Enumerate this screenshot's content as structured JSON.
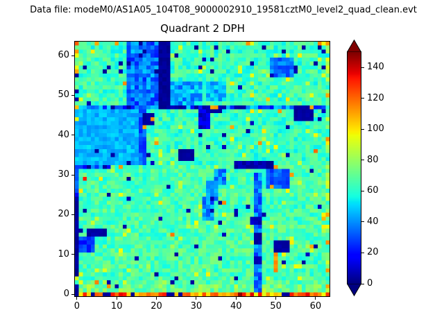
{
  "header": {
    "text": "Data file: modeM0/AS1A05_104T08_9000002910_19581cztM0_level2_quad_clean.evt"
  },
  "chart_data": {
    "type": "heatmap",
    "title": "Quadrant 2 DPH",
    "grid_size": [
      64,
      64
    ],
    "x_range": [
      0,
      64
    ],
    "y_range": [
      0,
      64
    ],
    "x_ticks": [
      0,
      10,
      20,
      30,
      40,
      50,
      60
    ],
    "y_ticks": [
      0,
      10,
      20,
      30,
      40,
      50,
      60
    ],
    "colormap": "jet",
    "value_range": [
      0,
      150
    ],
    "colorbar": {
      "ticks": [
        0,
        20,
        40,
        60,
        80,
        100,
        120,
        140
      ],
      "extend": "both",
      "under_color": "#000080",
      "over_color": "#7f0000"
    },
    "description": "64x64 detector pixel histogram (DPH); cyan-green background ~60-80 counts, blue/navy dead columns and blobs, hot orange/red edge pixels",
    "generation": {
      "seed": 1337,
      "layers": [
        {
          "op": "fill",
          "x": [
            0,
            63
          ],
          "y": [
            0,
            63
          ],
          "base": 66,
          "noise": 11
        },
        {
          "op": "fill",
          "x": [
            0,
            63
          ],
          "y": [
            0,
            2
          ],
          "base": 72,
          "noise": 13
        },
        {
          "op": "fill",
          "x": [
            0,
            16
          ],
          "y": [
            33,
            47
          ],
          "base": 46,
          "noise": 7
        },
        {
          "op": "fill",
          "x": [
            17,
            63
          ],
          "y": [
            33,
            47
          ],
          "base": 63,
          "noise": 10
        },
        {
          "op": "fill",
          "x": [
            0,
            63
          ],
          "y": [
            48,
            63
          ],
          "base": 64,
          "noise": 11
        },
        {
          "op": "fill",
          "x": [
            13,
            20
          ],
          "y": [
            48,
            63
          ],
          "base": 36,
          "noise": 14
        },
        {
          "op": "fill",
          "x": [
            24,
            31
          ],
          "y": [
            48,
            53
          ],
          "base": 44,
          "noise": 13
        },
        {
          "op": "fill",
          "x": [
            33,
            37
          ],
          "y": [
            49,
            53
          ],
          "base": 46,
          "noise": 11
        },
        {
          "op": "fill",
          "x": [
            49,
            54
          ],
          "y": [
            55,
            59
          ],
          "base": 36,
          "noise": 10
        },
        {
          "op": "fill",
          "x": [
            0,
            63
          ],
          "y": [
            47,
            47
          ],
          "base": 36,
          "noise": 20
        },
        {
          "op": "fill",
          "x": [
            21,
            23
          ],
          "y": [
            47,
            63
          ],
          "base": 3,
          "noise": 2
        },
        {
          "op": "fill",
          "x": [
            32,
            36
          ],
          "y": [
            46,
            47
          ],
          "base": 5,
          "noise": 3
        },
        {
          "op": "fill",
          "x": [
            55,
            59
          ],
          "y": [
            44,
            47
          ],
          "base": 4,
          "noise": 2
        },
        {
          "op": "fill",
          "x": [
            40,
            42
          ],
          "y": [
            47,
            47
          ],
          "base": 4,
          "noise": 2
        },
        {
          "op": "fill",
          "x": [
            24,
            27
          ],
          "y": [
            47,
            47
          ],
          "base": 6,
          "noise": 3
        },
        {
          "op": "fill",
          "x": [
            16,
            17
          ],
          "y": [
            33,
            47
          ],
          "base": 30,
          "noise": 9
        },
        {
          "op": "fill",
          "x": [
            17,
            19
          ],
          "y": [
            43,
            45
          ],
          "base": 4,
          "noise": 2
        },
        {
          "op": "fill",
          "x": [
            31,
            33
          ],
          "y": [
            42,
            46
          ],
          "base": 12,
          "noise": 7
        },
        {
          "op": "fill",
          "x": [
            26,
            29
          ],
          "y": [
            34,
            36
          ],
          "base": 4,
          "noise": 2
        },
        {
          "op": "fill",
          "x": [
            45,
            46
          ],
          "y": [
            0,
            30
          ],
          "base": 36,
          "noise": 12
        },
        {
          "op": "fill",
          "x": [
            45,
            46
          ],
          "y": [
            13,
            15
          ],
          "base": 5,
          "noise": 2
        },
        {
          "op": "fill",
          "x": [
            45,
            46
          ],
          "y": [
            8,
            9
          ],
          "base": 6,
          "noise": 2
        },
        {
          "op": "fill",
          "x": [
            44,
            46
          ],
          "y": [
            18,
            19
          ],
          "base": 8,
          "noise": 3
        },
        {
          "op": "fill",
          "x": [
            50,
            50
          ],
          "y": [
            6,
            10
          ],
          "base": 110,
          "noise": 6
        },
        {
          "op": "fill",
          "x": [
            50,
            53
          ],
          "y": [
            11,
            13
          ],
          "base": 4,
          "noise": 2
        },
        {
          "op": "fill",
          "x": [
            48,
            53
          ],
          "y": [
            27,
            31
          ],
          "base": 32,
          "noise": 8
        },
        {
          "op": "fill",
          "x": [
            32,
            34
          ],
          "y": [
            19,
            24
          ],
          "base": 38,
          "noise": 11
        },
        {
          "op": "fill",
          "x": [
            33,
            35
          ],
          "y": [
            24,
            28
          ],
          "base": 37,
          "noise": 10
        },
        {
          "op": "fill",
          "x": [
            35,
            37
          ],
          "y": [
            28,
            31
          ],
          "base": 39,
          "noise": 11
        },
        {
          "op": "fill",
          "x": [
            40,
            49
          ],
          "y": [
            32,
            33
          ],
          "base": 6,
          "noise": 4
        },
        {
          "op": "fill",
          "x": [
            0,
            8
          ],
          "y": [
            32,
            32
          ],
          "base": 32,
          "noise": 16
        },
        {
          "op": "fill",
          "x": [
            1,
            4
          ],
          "y": [
            11,
            14
          ],
          "base": 26,
          "noise": 8
        },
        {
          "op": "fill",
          "x": [
            3,
            7
          ],
          "y": [
            15,
            16
          ],
          "base": 5,
          "noise": 2
        },
        {
          "op": "fill",
          "x": [
            0,
            0
          ],
          "y": [
            25,
            31
          ],
          "base": 28,
          "noise": 10
        },
        {
          "op": "fill",
          "x": [
            0,
            0
          ],
          "y": [
            5,
            24
          ],
          "base": 4,
          "noise": 2
        },
        {
          "op": "fill",
          "x": [
            0,
            0
          ],
          "y": [
            0,
            2
          ],
          "base": 5,
          "noise": 2
        },
        {
          "op": "fill",
          "x": [
            63,
            63
          ],
          "y": [
            1,
            62
          ],
          "base": 75,
          "noise": 22
        },
        {
          "op": "speckle",
          "count": 120,
          "vmin": 82,
          "vmax": 100,
          "cmin": 52,
          "cmax": 80
        },
        {
          "op": "speckle",
          "count": 42,
          "vmin": 2,
          "vmax": 9,
          "cmin": 40,
          "cmax": 80
        },
        {
          "op": "speckle",
          "count": 10,
          "vmin": 104,
          "vmax": 118,
          "cmin": 52,
          "cmax": 80
        },
        {
          "op": "row_random",
          "y": 0,
          "x": [
            1,
            63
          ],
          "vmin": 92,
          "vmax": 138,
          "low_p": 0.13,
          "low_v": 3
        },
        {
          "op": "pixels",
          "list": [
            [
              2,
              29,
              132
            ],
            [
              41,
              0,
              148
            ],
            [
              11,
              32,
              112
            ],
            [
              20,
              38,
              112
            ],
            [
              19,
              44,
              114
            ],
            [
              35,
              47,
              112
            ],
            [
              59,
              47,
              110
            ],
            [
              51,
              46,
              112
            ],
            [
              50,
              32,
              112
            ],
            [
              54,
              30,
              112
            ],
            [
              49,
              27,
              110
            ],
            [
              63,
              39,
              114
            ],
            [
              60,
              36,
              120
            ],
            [
              63,
              50,
              110
            ],
            [
              61,
              63,
              116
            ],
            [
              43,
              63,
              114
            ],
            [
              10,
              63,
              112
            ],
            [
              5,
              63,
              110
            ],
            [
              0,
              63,
              122
            ],
            [
              0,
              61,
              112
            ],
            [
              0,
              60,
              95
            ],
            [
              63,
              63,
              112
            ],
            [
              63,
              2,
              110
            ],
            [
              63,
              6,
              112
            ],
            [
              63,
              13,
              114
            ],
            [
              63,
              20,
              110
            ],
            [
              62,
              17,
              98
            ],
            [
              0,
              56,
              110
            ],
            [
              0,
              47,
              106
            ],
            [
              0,
              44,
              95
            ],
            [
              34,
              47,
              110
            ],
            [
              17,
              42,
              110
            ],
            [
              16,
              63,
              4
            ],
            [
              17,
              61,
              4
            ],
            [
              16,
              60,
              5
            ],
            [
              38,
              61,
              4
            ],
            [
              52,
              61,
              4
            ],
            [
              47,
              62,
              4
            ],
            [
              57,
              62,
              5
            ],
            [
              11,
              58,
              4
            ],
            [
              8,
              57,
              5
            ],
            [
              2,
              57,
              4
            ],
            [
              0,
              55,
              4
            ],
            [
              0,
              51,
              5
            ],
            [
              25,
              60,
              4
            ],
            [
              31,
              57,
              4
            ],
            [
              34,
              59,
              5
            ],
            [
              44,
              58,
              4
            ],
            [
              55,
              57,
              4
            ],
            [
              60,
              58,
              4
            ],
            [
              5,
              36,
              4
            ],
            [
              9,
              35,
              5
            ],
            [
              18,
              35,
              4
            ],
            [
              23,
              27,
              4
            ],
            [
              8,
              25,
              4
            ],
            [
              12,
              17,
              5
            ],
            [
              20,
              5,
              4
            ],
            [
              24,
              3,
              4
            ],
            [
              30,
              12,
              5
            ],
            [
              36,
              23,
              4
            ],
            [
              34,
              21,
              5
            ],
            [
              37,
              40,
              4
            ],
            [
              43,
              41,
              4
            ],
            [
              59,
              31,
              4
            ],
            [
              53,
              35,
              5
            ],
            [
              57,
              8,
              4
            ],
            [
              60,
              12,
              4
            ],
            [
              52,
              8,
              5
            ],
            [
              36,
              18,
              4
            ],
            [
              40,
              4,
              4
            ],
            [
              28,
              34,
              4
            ],
            [
              3,
              32,
              4
            ],
            [
              7,
              32,
              5
            ],
            [
              13,
              33,
              4
            ],
            [
              2,
              21,
              4
            ],
            [
              1,
              16,
              4
            ],
            [
              62,
              57,
              4
            ],
            [
              58,
              44,
              4
            ],
            [
              61,
              44,
              5
            ],
            [
              30,
              47,
              4
            ],
            [
              37,
              47,
              5
            ],
            [
              13,
              47,
              4
            ],
            [
              9,
              47,
              4
            ],
            [
              26,
              0,
              4
            ],
            [
              8,
              0,
              4
            ],
            [
              52,
              0,
              4
            ]
          ]
        }
      ]
    }
  }
}
